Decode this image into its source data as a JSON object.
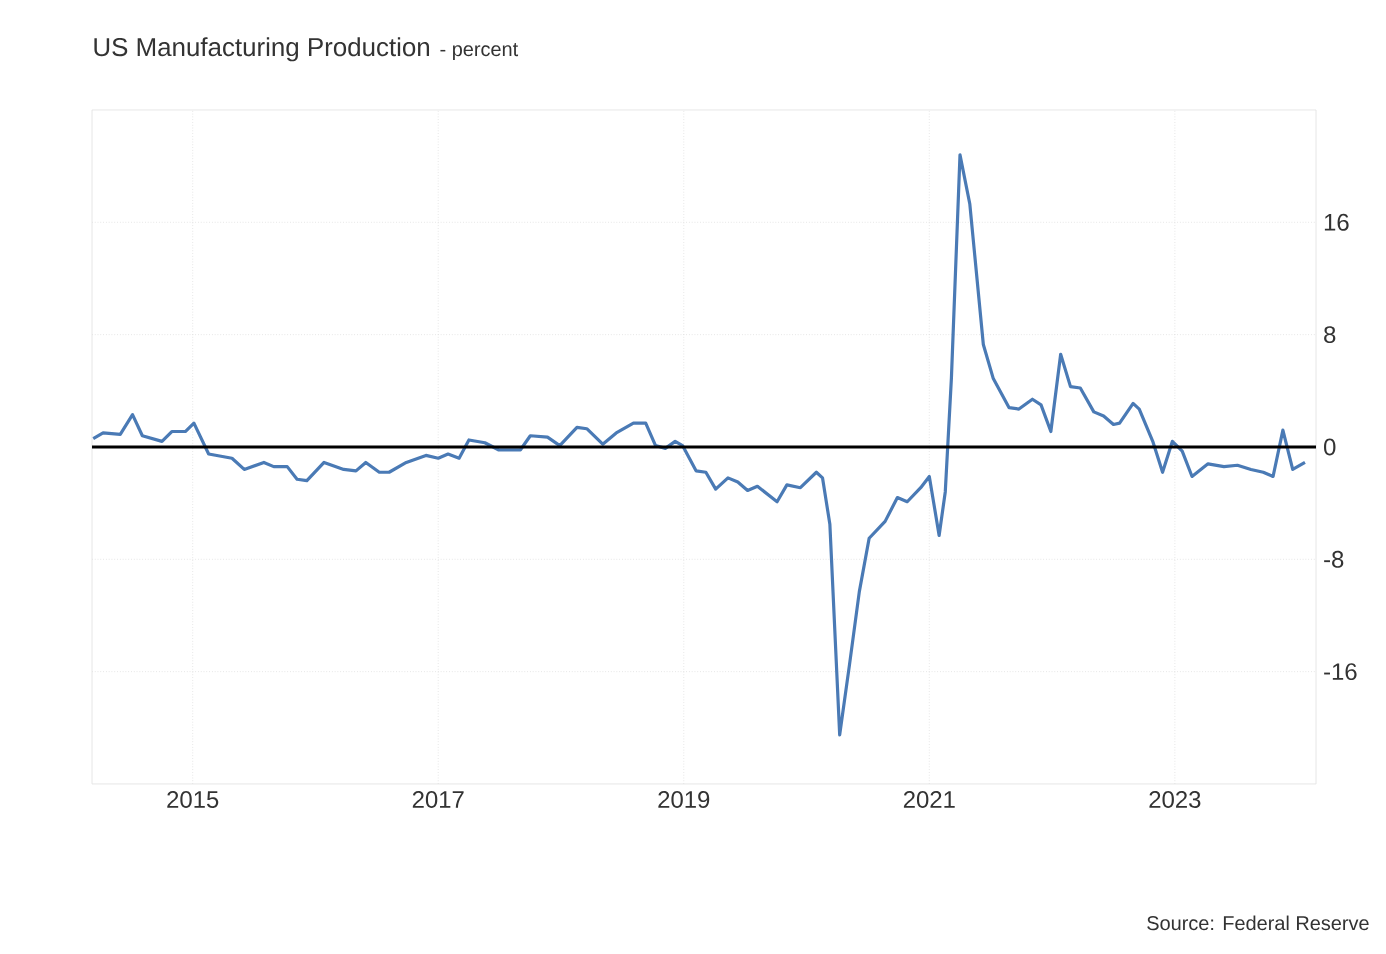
{
  "chart_data": {
    "type": "line",
    "title": "US Manufacturing Production",
    "subtitle": "- percent",
    "annotations": [
      "Source: Federal Reserve"
    ],
    "x": [
      2014.19,
      2014.27,
      2014.41,
      2014.51,
      2014.59,
      2014.75,
      2014.83,
      2014.94,
      2015.01,
      2015.13,
      2015.32,
      2015.42,
      2015.58,
      2015.66,
      2015.77,
      2015.85,
      2015.93,
      2016.07,
      2016.23,
      2016.33,
      2016.41,
      2016.52,
      2016.6,
      2016.74,
      2016.9,
      2017.0,
      2017.08,
      2017.17,
      2017.25,
      2017.38,
      2017.49,
      2017.67,
      2017.75,
      2017.89,
      2017.99,
      2018.13,
      2018.21,
      2018.34,
      2018.45,
      2018.59,
      2018.69,
      2018.77,
      2018.85,
      2018.93,
      2018.99,
      2019.1,
      2019.18,
      2019.26,
      2019.36,
      2019.44,
      2019.52,
      2019.6,
      2019.76,
      2019.84,
      2019.95,
      2020.08,
      2020.13,
      2020.19,
      2020.27,
      2020.35,
      2020.43,
      2020.51,
      2020.64,
      2020.74,
      2020.82,
      2020.93,
      2021.0,
      2021.08,
      2021.13,
      2021.18,
      2021.25,
      2021.33,
      2021.44,
      2021.52,
      2021.65,
      2021.73,
      2021.84,
      2021.91,
      2021.99,
      2022.07,
      2022.15,
      2022.23,
      2022.34,
      2022.42,
      2022.5,
      2022.55,
      2022.66,
      2022.71,
      2022.82,
      2022.9,
      2022.98,
      2023.06,
      2023.14,
      2023.27,
      2023.4,
      2023.51,
      2023.62,
      2023.72,
      2023.8,
      2023.88,
      2023.96,
      2024.06
    ],
    "series": [
      {
        "color": "#4a7ab5",
        "values": [
          0.6,
          1.0,
          0.9,
          2.3,
          0.8,
          0.4,
          1.1,
          1.1,
          1.7,
          -0.5,
          -0.8,
          -1.6,
          -1.1,
          -1.4,
          -1.4,
          -2.3,
          -2.4,
          -1.1,
          -1.6,
          -1.7,
          -1.1,
          -1.8,
          -1.8,
          -1.1,
          -0.6,
          -0.8,
          -0.5,
          -0.8,
          0.5,
          0.3,
          -0.2,
          -0.2,
          0.8,
          0.7,
          0.1,
          1.4,
          1.3,
          0.2,
          1.0,
          1.7,
          1.7,
          0.1,
          -0.1,
          0.4,
          0.1,
          -1.7,
          -1.8,
          -3.0,
          -2.2,
          -2.5,
          -3.1,
          -2.8,
          -3.9,
          -2.7,
          -2.9,
          -1.8,
          -2.2,
          -5.5,
          -20.5,
          -15.5,
          -10.3,
          -6.5,
          -5.3,
          -3.6,
          -3.9,
          -2.9,
          -2.1,
          -6.3,
          -3.2,
          4.9,
          20.8,
          17.3,
          7.3,
          4.9,
          2.8,
          2.7,
          3.4,
          3.0,
          1.1,
          6.6,
          4.3,
          4.2,
          2.5,
          2.2,
          1.6,
          1.7,
          3.1,
          2.7,
          0.4,
          -1.8,
          0.4,
          -0.3,
          -2.1,
          -1.2,
          -1.4,
          -1.3,
          -1.6,
          -1.8,
          -2.1,
          1.2,
          -1.6,
          -1.1
        ]
      }
    ],
    "xlim": [
      2014.18,
      2024.15
    ],
    "xticks": [
      2015,
      2017,
      2019,
      2021,
      2023
    ],
    "ylim": [
      -24,
      24
    ],
    "yticks": [
      -16,
      -8,
      0,
      8,
      16
    ],
    "ref_lines": [
      {
        "axis": "y",
        "value": 0,
        "color": "#000000"
      }
    ],
    "grid": true,
    "marker": "none",
    "line_style": "solid"
  }
}
